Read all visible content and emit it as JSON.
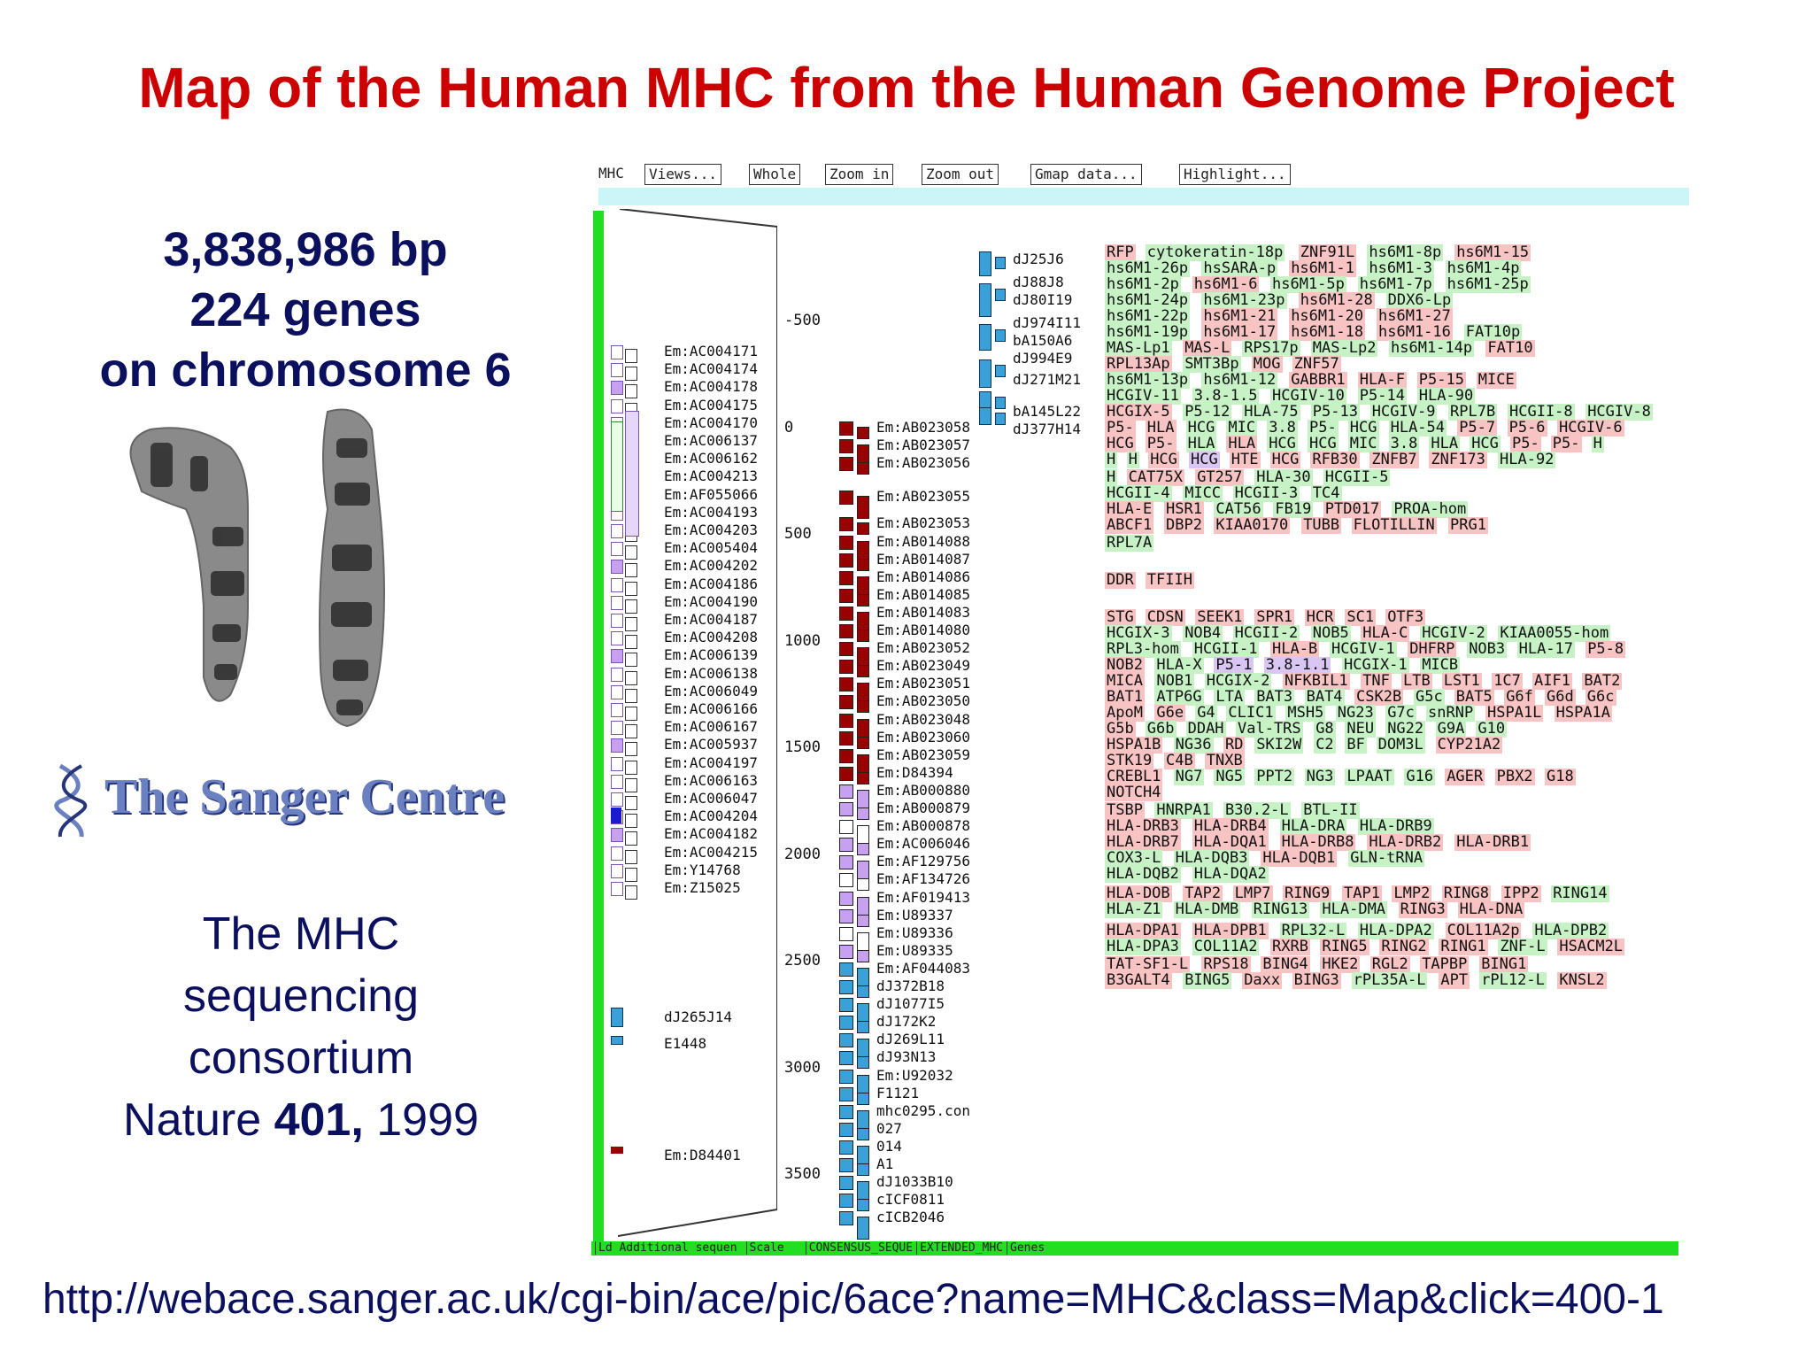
{
  "title": "Map of the Human MHC from the Human Genome Project",
  "stats": {
    "bp": "3,838,986 bp",
    "genes": "224 genes",
    "chromosome": "on chromosome 6"
  },
  "logo": {
    "text": "The Sanger Centre"
  },
  "consortium": {
    "line1": "The MHC",
    "line2": "sequencing",
    "line3": "consortium",
    "journal": "Nature ",
    "volume": "401,",
    "year": " 1999"
  },
  "url": "http://webace.sanger.ac.uk/cgi-bin/ace/pic/6ace?name=MHC&class=Map&click=400-1",
  "colors": {
    "title": "#cc0000",
    "text": "#0a0f5e",
    "green_bar": "#22dd22",
    "cyan_bar": "#ccf5f8",
    "gene_pink": "#f7c3c3",
    "gene_green": "#c6f2c6",
    "gene_lavender": "#d9c6f2",
    "clone_red": "#9b0000",
    "clone_blue": "#3aa0d8",
    "clone_violet": "#c8a0f0"
  },
  "map": {
    "label": "MHC",
    "buttons": [
      "Views...",
      "Whole",
      "Zoom in",
      "Zoom out",
      "Gmap data...",
      "Highlight..."
    ],
    "footer": [
      "Ld Additional sequen",
      "Scale",
      "CONSENSUS_SEQUE",
      "EXTENDED_MHC",
      "Genes"
    ],
    "scale_ticks": [
      "-500",
      "0",
      "500",
      "1000",
      "1500",
      "2000",
      "2500",
      "3000",
      "3500"
    ],
    "additional_labels": [
      "Em:AC004171",
      "Em:AC004174",
      "Em:AC004178",
      "Em:AC004175",
      "Em:AC004170",
      "Em:AC006137",
      "Em:AC006162",
      "Em:AC004213",
      "Em:AF055066",
      "Em:AC004193",
      "Em:AC004203",
      "Em:AC005404",
      "Em:AC004202",
      "Em:AC004186",
      "Em:AC004190",
      "Em:AC004187",
      "Em:AC004208",
      "Em:AC006139",
      "Em:AC006138",
      "Em:AC006049",
      "Em:AC006166",
      "Em:AC006167",
      "Em:AC005937",
      "Em:AC004197",
      "Em:AC006163",
      "Em:AC006047",
      "Em:AC004204",
      "Em:AC004182",
      "Em:AC004215",
      "Em:Y14768",
      "Em:Z15025"
    ],
    "additional_lower": [
      "dJ265J14",
      "E1448",
      "Em:D84401"
    ],
    "consensus_labels": [
      "Em:AB023058",
      "Em:AB023057",
      "Em:AB023056",
      "Em:AB023055",
      "Em:AB023053",
      "Em:AB014088",
      "Em:AB014087",
      "Em:AB014086",
      "Em:AB014085",
      "Em:AB014083",
      "Em:AB014080",
      "Em:AB023052",
      "Em:AB023049",
      "Em:AB023051",
      "Em:AB023050",
      "Em:AB023048",
      "Em:AB023060",
      "Em:AB023059",
      "Em:D84394",
      "Em:AB000880",
      "Em:AB000879",
      "Em:AB000878",
      "Em:AC006046",
      "Em:AF129756",
      "Em:AF134726",
      "Em:AF019413",
      "Em:U89337",
      "Em:U89336",
      "Em:U89335",
      "Em:AF044083",
      "dJ372B18",
      "dJ1077I5",
      "dJ172K2",
      "dJ269L11",
      "dJ93N13",
      "Em:U92032",
      "F1121",
      "mhc0295.con",
      "027",
      "014",
      "A1",
      "dJ1033B10",
      "cICF0811",
      "cICB2046"
    ],
    "extended_labels": [
      "dJ25J6",
      "dJ88J8",
      "dJ80I19",
      "dJ974I11",
      "bA150A6",
      "dJ994E9",
      "dJ271M21",
      "bA145L22",
      "dJ377H14"
    ],
    "gene_rows": [
      [
        [
          "RFP",
          "p"
        ],
        [
          "cytokeratin-18p",
          "g"
        ],
        [
          "ZNF91L",
          "p"
        ],
        [
          "hs6M1-8p",
          "g"
        ],
        [
          "hs6M1-15",
          "p"
        ]
      ],
      [
        [
          "hs6M1-26p",
          "g"
        ],
        [
          "hsSARA-p",
          "g"
        ],
        [
          "hs6M1-1",
          "p"
        ],
        [
          "hs6M1-3",
          "g"
        ],
        [
          "hs6M1-4p",
          "g"
        ]
      ],
      [
        [
          "hs6M1-2p",
          "g"
        ],
        [
          "hs6M1-6",
          "p"
        ],
        [
          "hs6M1-5p",
          "g"
        ],
        [
          "hs6M1-7p",
          "g"
        ],
        [
          "hs6M1-25p",
          "g"
        ]
      ],
      [
        [
          "hs6M1-24p",
          "g"
        ],
        [
          "hs6M1-23p",
          "g"
        ],
        [
          "hs6M1-28",
          "p"
        ],
        [
          "DDX6-Lp",
          "g"
        ]
      ],
      [
        [
          "hs6M1-22p",
          "g"
        ],
        [
          "hs6M1-21",
          "p"
        ],
        [
          "hs6M1-20",
          "p"
        ],
        [
          "hs6M1-27",
          "p"
        ]
      ],
      [
        [
          "hs6M1-19p",
          "g"
        ],
        [
          "hs6M1-17",
          "p"
        ],
        [
          "hs6M1-18",
          "p"
        ],
        [
          "hs6M1-16",
          "p"
        ],
        [
          "FAT10p",
          "g"
        ]
      ],
      [
        [
          "MAS-Lp1",
          "g"
        ],
        [
          "MAS-L",
          "p"
        ],
        [
          "RPS17p",
          "g"
        ],
        [
          "MAS-Lp2",
          "g"
        ],
        [
          "hs6M1-14p",
          "g"
        ],
        [
          "FAT10",
          "p"
        ]
      ],
      [
        [
          "RPL13Ap",
          "p"
        ],
        [
          "SMT3Bp",
          "g"
        ],
        [
          "MOG",
          "p"
        ],
        [
          "ZNF57",
          "p"
        ]
      ],
      [
        [
          "hs6M1-13p",
          "g"
        ],
        [
          "hs6M1-12",
          "g"
        ],
        [
          "GABBR1",
          "p"
        ],
        [
          "HLA-F",
          "p"
        ],
        [
          "P5-15",
          "p"
        ],
        [
          "MICE",
          "p"
        ]
      ],
      [
        [
          "HCGIV-11",
          "g"
        ],
        [
          "3.8-1.5",
          "g"
        ],
        [
          "HCGIV-10",
          "g"
        ],
        [
          "P5-14",
          "g"
        ],
        [
          "HLA-90",
          "g"
        ]
      ],
      [
        [
          "HCGIX-5",
          "p"
        ],
        [
          "P5-12",
          "g"
        ],
        [
          "HLA-75",
          "g"
        ],
        [
          "P5-13",
          "g"
        ],
        [
          "HCGIV-9",
          "g"
        ],
        [
          "RPL7B",
          "g"
        ],
        [
          "HCGII-8",
          "g"
        ],
        [
          "HCGIV-8",
          "g"
        ]
      ],
      [
        [
          "P5-",
          "p"
        ],
        [
          "HLA",
          "p"
        ],
        [
          "HCG",
          "g"
        ],
        [
          "MIC",
          "g"
        ],
        [
          "3.8",
          "g"
        ],
        [
          "P5-",
          "g"
        ],
        [
          "HCG",
          "g"
        ],
        [
          "HLA-54",
          "g"
        ],
        [
          "P5-7",
          "p"
        ],
        [
          "P5-6",
          "p"
        ],
        [
          "HCGIV-6",
          "p"
        ]
      ],
      [
        [
          "HCG",
          "p"
        ],
        [
          "P5-",
          "p"
        ],
        [
          "HLA",
          "g"
        ],
        [
          "HLA",
          "p"
        ],
        [
          "HCG",
          "g"
        ],
        [
          "HCG",
          "g"
        ],
        [
          "MIC",
          "g"
        ],
        [
          "3.8",
          "g"
        ],
        [
          "HLA",
          "g"
        ],
        [
          "HCG",
          "g"
        ],
        [
          "P5-",
          "p"
        ],
        [
          "P5-",
          "p"
        ],
        [
          "H",
          "g"
        ]
      ],
      [
        [
          "H",
          "g"
        ],
        [
          "H",
          "g"
        ],
        [
          "HCG",
          "p"
        ],
        [
          "HCG",
          "l"
        ],
        [
          "HTE",
          "p"
        ],
        [
          "HCG",
          "p"
        ],
        [
          "RFB30",
          "p"
        ],
        [
          "ZNFB7",
          "p"
        ],
        [
          "ZNF173",
          "p"
        ],
        [
          "HLA-92",
          "g"
        ]
      ],
      [
        [
          "H",
          "g"
        ],
        [
          "CAT75X",
          "p"
        ],
        [
          "GT257",
          "p"
        ],
        [
          "HLA-30",
          "g"
        ],
        [
          "HCGII-5",
          "g"
        ]
      ],
      [
        [
          "HCGII-4",
          "g"
        ],
        [
          "MICC",
          "g"
        ],
        [
          "HCGII-3",
          "g"
        ],
        [
          "TC4",
          "g"
        ]
      ],
      [
        [
          "HLA-E",
          "p"
        ],
        [
          "HSR1",
          "p"
        ],
        [
          "CAT56",
          "g"
        ],
        [
          "FB19",
          "g"
        ],
        [
          "PTD017",
          "p"
        ],
        [
          "PROA-hom",
          "g"
        ]
      ],
      [
        [
          "ABCF1",
          "p"
        ],
        [
          "DBP2",
          "p"
        ],
        [
          "KIAA0170",
          "p"
        ],
        [
          "TUBB",
          "p"
        ],
        [
          "FLOTILLIN",
          "p"
        ],
        [
          "PRG1",
          "p"
        ]
      ],
      [
        [
          "RPL7A",
          "g"
        ]
      ],
      [
        [
          "DDR",
          "p"
        ],
        [
          "TFIIH",
          "p"
        ]
      ],
      [
        [
          "STG",
          "p"
        ],
        [
          "CDSN",
          "p"
        ],
        [
          "SEEK1",
          "p"
        ],
        [
          "SPR1",
          "p"
        ],
        [
          "HCR",
          "p"
        ],
        [
          "SC1",
          "p"
        ],
        [
          "OTF3",
          "p"
        ]
      ],
      [
        [
          "HCGIX-3",
          "g"
        ],
        [
          "NOB4",
          "g"
        ],
        [
          "HCGII-2",
          "g"
        ],
        [
          "NOB5",
          "g"
        ],
        [
          "HLA-C",
          "p"
        ],
        [
          "HCGIV-2",
          "g"
        ],
        [
          "KIAA0055-hom",
          "g"
        ]
      ],
      [
        [
          "RPL3-hom",
          "g"
        ],
        [
          "HCGII-1",
          "g"
        ],
        [
          "HLA-B",
          "p"
        ],
        [
          "HCGIV-1",
          "g"
        ],
        [
          "DHFRP",
          "p"
        ],
        [
          "NOB3",
          "g"
        ],
        [
          "HLA-17",
          "g"
        ],
        [
          "P5-8",
          "p"
        ]
      ],
      [
        [
          "NOB2",
          "p"
        ],
        [
          "HLA-X",
          "g"
        ],
        [
          "P5-1",
          "l"
        ],
        [
          "3.8-1.1",
          "l"
        ],
        [
          "HCGIX-1",
          "g"
        ],
        [
          "MICB",
          "g"
        ]
      ],
      [
        [
          "MICA",
          "p"
        ],
        [
          "NOB1",
          "g"
        ],
        [
          "HCGIX-2",
          "g"
        ],
        [
          "NFKBIL1",
          "p"
        ],
        [
          "TNF",
          "p"
        ],
        [
          "LTB",
          "p"
        ],
        [
          "LST1",
          "p"
        ],
        [
          "1C7",
          "p"
        ],
        [
          "AIF1",
          "p"
        ],
        [
          "BAT2",
          "p"
        ]
      ],
      [
        [
          "BAT1",
          "p"
        ],
        [
          "ATP6G",
          "g"
        ],
        [
          "LTA",
          "g"
        ],
        [
          "BAT3",
          "g"
        ],
        [
          "BAT4",
          "g"
        ],
        [
          "CSK2B",
          "p"
        ],
        [
          "G5c",
          "g"
        ],
        [
          "BAT5",
          "p"
        ],
        [
          "G6f",
          "p"
        ],
        [
          "G6d",
          "p"
        ],
        [
          "G6c",
          "p"
        ]
      ],
      [
        [
          "ApoM",
          "p"
        ],
        [
          "G6e",
          "p"
        ],
        [
          "G4",
          "g"
        ],
        [
          "CLIC1",
          "g"
        ],
        [
          "MSH5",
          "g"
        ],
        [
          "NG23",
          "g"
        ],
        [
          "G7c",
          "g"
        ],
        [
          "snRNP",
          "g"
        ],
        [
          "HSPA1L",
          "p"
        ],
        [
          "HSPA1A",
          "p"
        ]
      ],
      [
        [
          "G5b",
          "p"
        ],
        [
          "G6b",
          "g"
        ],
        [
          "DDAH",
          "g"
        ],
        [
          "Val-TRS",
          "g"
        ],
        [
          "G8",
          "g"
        ],
        [
          "NEU",
          "g"
        ],
        [
          "NG22",
          "g"
        ],
        [
          "G9A",
          "g"
        ],
        [
          "G10",
          "g"
        ]
      ],
      [
        [
          "HSPA1B",
          "p"
        ],
        [
          "NG36",
          "g"
        ],
        [
          "RD",
          "p"
        ],
        [
          "SKI2W",
          "g"
        ],
        [
          "C2",
          "g"
        ],
        [
          "BF",
          "g"
        ],
        [
          "DOM3L",
          "g"
        ],
        [
          "CYP21A2",
          "p"
        ]
      ],
      [
        [
          "STK19",
          "p"
        ],
        [
          "C4B",
          "p"
        ],
        [
          "TNXB",
          "p"
        ]
      ],
      [
        [
          "CREBL1",
          "p"
        ],
        [
          "NG7",
          "g"
        ],
        [
          "NG5",
          "g"
        ],
        [
          "PPT2",
          "g"
        ],
        [
          "NG3",
          "g"
        ],
        [
          "LPAAT",
          "g"
        ],
        [
          "G16",
          "g"
        ],
        [
          "AGER",
          "p"
        ],
        [
          "PBX2",
          "p"
        ],
        [
          "G18",
          "p"
        ]
      ],
      [
        [
          "NOTCH4",
          "p"
        ]
      ],
      [
        [
          "TSBP",
          "p"
        ],
        [
          "HNRPA1",
          "g"
        ],
        [
          "B30.2-L",
          "g"
        ],
        [
          "BTL-II",
          "g"
        ]
      ],
      [
        [
          "HLA-DRB3",
          "p"
        ],
        [
          "HLA-DRB4",
          "p"
        ],
        [
          "HLA-DRA",
          "g"
        ],
        [
          "HLA-DRB9",
          "g"
        ]
      ],
      [
        [
          "HLA-DRB7",
          "p"
        ],
        [
          "HLA-DQA1",
          "p"
        ],
        [
          "HLA-DRB8",
          "p"
        ],
        [
          "HLA-DRB2",
          "p"
        ],
        [
          "HLA-DRB1",
          "p"
        ]
      ],
      [
        [
          "COX3-L",
          "g"
        ],
        [
          "HLA-DQB3",
          "g"
        ],
        [
          "HLA-DQB1",
          "p"
        ],
        [
          "GLN-tRNA",
          "g"
        ]
      ],
      [
        [
          "HLA-DQB2",
          "g"
        ],
        [
          "HLA-DQA2",
          "g"
        ]
      ],
      [
        [
          "HLA-DOB",
          "p"
        ],
        [
          "TAP2",
          "p"
        ],
        [
          "LMP7",
          "p"
        ],
        [
          "RING9",
          "p"
        ],
        [
          "TAP1",
          "p"
        ],
        [
          "LMP2",
          "p"
        ],
        [
          "RING8",
          "p"
        ],
        [
          "IPP2",
          "p"
        ],
        [
          "RING14",
          "g"
        ]
      ],
      [
        [
          "HLA-Z1",
          "g"
        ],
        [
          "HLA-DMB",
          "g"
        ],
        [
          "RING13",
          "g"
        ],
        [
          "HLA-DMA",
          "g"
        ],
        [
          "RING3",
          "p"
        ],
        [
          "HLA-DNA",
          "p"
        ]
      ],
      [
        [
          "HLA-DPA1",
          "p"
        ],
        [
          "HLA-DPB1",
          "p"
        ],
        [
          "RPL32-L",
          "g"
        ],
        [
          "HLA-DPA2",
          "g"
        ],
        [
          "COL11A2p",
          "p"
        ],
        [
          "HLA-DPB2",
          "g"
        ]
      ],
      [
        [
          "HLA-DPA3",
          "g"
        ],
        [
          "COL11A2",
          "g"
        ],
        [
          "RXRB",
          "p"
        ],
        [
          "RING5",
          "p"
        ],
        [
          "RING2",
          "p"
        ],
        [
          "RING1",
          "p"
        ],
        [
          "ZNF-L",
          "g"
        ],
        [
          "HSACM2L",
          "p"
        ]
      ],
      [
        [
          "TAT-SF1-L",
          "p"
        ],
        [
          "RPS18",
          "p"
        ],
        [
          "BING4",
          "p"
        ],
        [
          "HKE2",
          "p"
        ],
        [
          "RGL2",
          "p"
        ],
        [
          "TAPBP",
          "p"
        ],
        [
          "BING1",
          "p"
        ]
      ],
      [
        [
          "B3GALT4",
          "p"
        ],
        [
          "BING5",
          "g"
        ],
        [
          "Daxx",
          "p"
        ],
        [
          "BING3",
          "p"
        ],
        [
          "rPL35A-L",
          "g"
        ],
        [
          "APT",
          "p"
        ],
        [
          "rPL12-L",
          "g"
        ],
        [
          "KNSL2",
          "p"
        ]
      ]
    ]
  }
}
